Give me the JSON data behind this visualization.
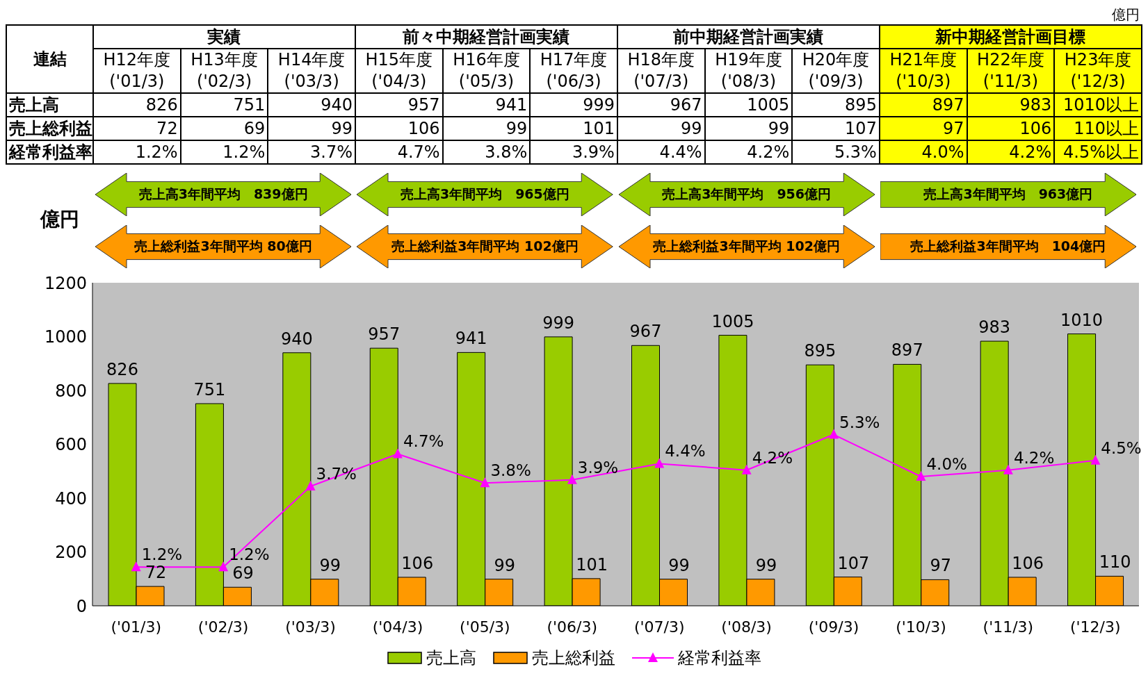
{
  "chart_data": [
    {
      "type": "other",
      "title": "連結",
      "annotations": [
        "億円",
        "実績",
        "前々中期経営計画実績",
        "前中期経営計画実績",
        "新中期経営計画目標"
      ],
      "categories": [
        "H12年度\n('01/3)",
        "H13年度\n('02/3)",
        "H14年度\n('03/3)",
        "H15年度\n('04/3)",
        "H16年度\n('05/3)",
        "H17年度\n('06/3)",
        "H18年度\n('07/3)",
        "H19年度\n('08/3)",
        "H20年度\n('09/3)",
        "H21年度\n('10/3)",
        "H22年度\n('11/3)",
        "H23年度\n('12/3)"
      ],
      "y_categories": [
        "売上高",
        "売上総利益",
        "経常利益率"
      ],
      "cell_labels": [
        [
          "826",
          "751",
          "940",
          "957",
          "941",
          "999",
          "967",
          "1005",
          "895",
          "897",
          "983",
          "1010以上"
        ],
        [
          "72",
          "69",
          "99",
          "106",
          "99",
          "101",
          "99",
          "99",
          "107",
          "97",
          "106",
          "110以上"
        ],
        [
          "1.2%",
          "1.2%",
          "3.7%",
          "4.7%",
          "3.8%",
          "3.9%",
          "4.4%",
          "4.2%",
          "5.3%",
          "4.0%",
          "4.2%",
          "4.5%以上"
        ]
      ]
    },
    {
      "type": "bar",
      "ylabel": "億円",
      "categories": [
        "('01/3)",
        "('02/3)",
        "('03/3)",
        "('04/3)",
        "('05/3)",
        "('06/3)",
        "('07/3)",
        "('08/3)",
        "('09/3)",
        "('10/3)",
        "('11/3)",
        "('12/3)"
      ],
      "series": [
        {
          "name": "売上高",
          "color": "#99cc00",
          "values": [
            826,
            751,
            940,
            957,
            941,
            999,
            967,
            1005,
            895,
            897,
            983,
            1010
          ]
        },
        {
          "name": "売上総利益",
          "color": "#ff9900",
          "values": [
            72,
            69,
            99,
            106,
            99,
            101,
            99,
            99,
            107,
            97,
            106,
            110
          ]
        },
        {
          "name": "経常利益率",
          "type": "line",
          "axis": "y2",
          "color": "#ff00ff",
          "marker": "triangle",
          "values": [
            1.2,
            1.2,
            3.7,
            4.7,
            3.8,
            3.9,
            4.4,
            4.2,
            5.3,
            4.0,
            4.2,
            4.5
          ],
          "value_labels": [
            "1.2%",
            "1.2%",
            "3.7%",
            "4.7%",
            "3.8%",
            "3.9%",
            "4.4%",
            "4.2%",
            "5.3%",
            "4.0%",
            "4.2%",
            "4.5%"
          ]
        }
      ],
      "data_labels": true,
      "ylim": [
        0,
        1200
      ],
      "yticks": [
        0,
        200,
        400,
        600,
        800,
        1000,
        1200
      ],
      "y2lim": [
        0,
        10
      ],
      "grid": false,
      "legend": "bottom",
      "annotations": [
        "売上高3年間平均　839億円",
        "売上高3年間平均　965億円",
        "売上高3年間平均　956億円",
        "売上高3年間平均　963億円",
        "売上総利益3年間平均 80億円",
        "売上総利益3年間平均 102億円",
        "売上総利益3年間平均 102億円",
        "売上総利益3年間平均　104億円"
      ]
    }
  ]
}
